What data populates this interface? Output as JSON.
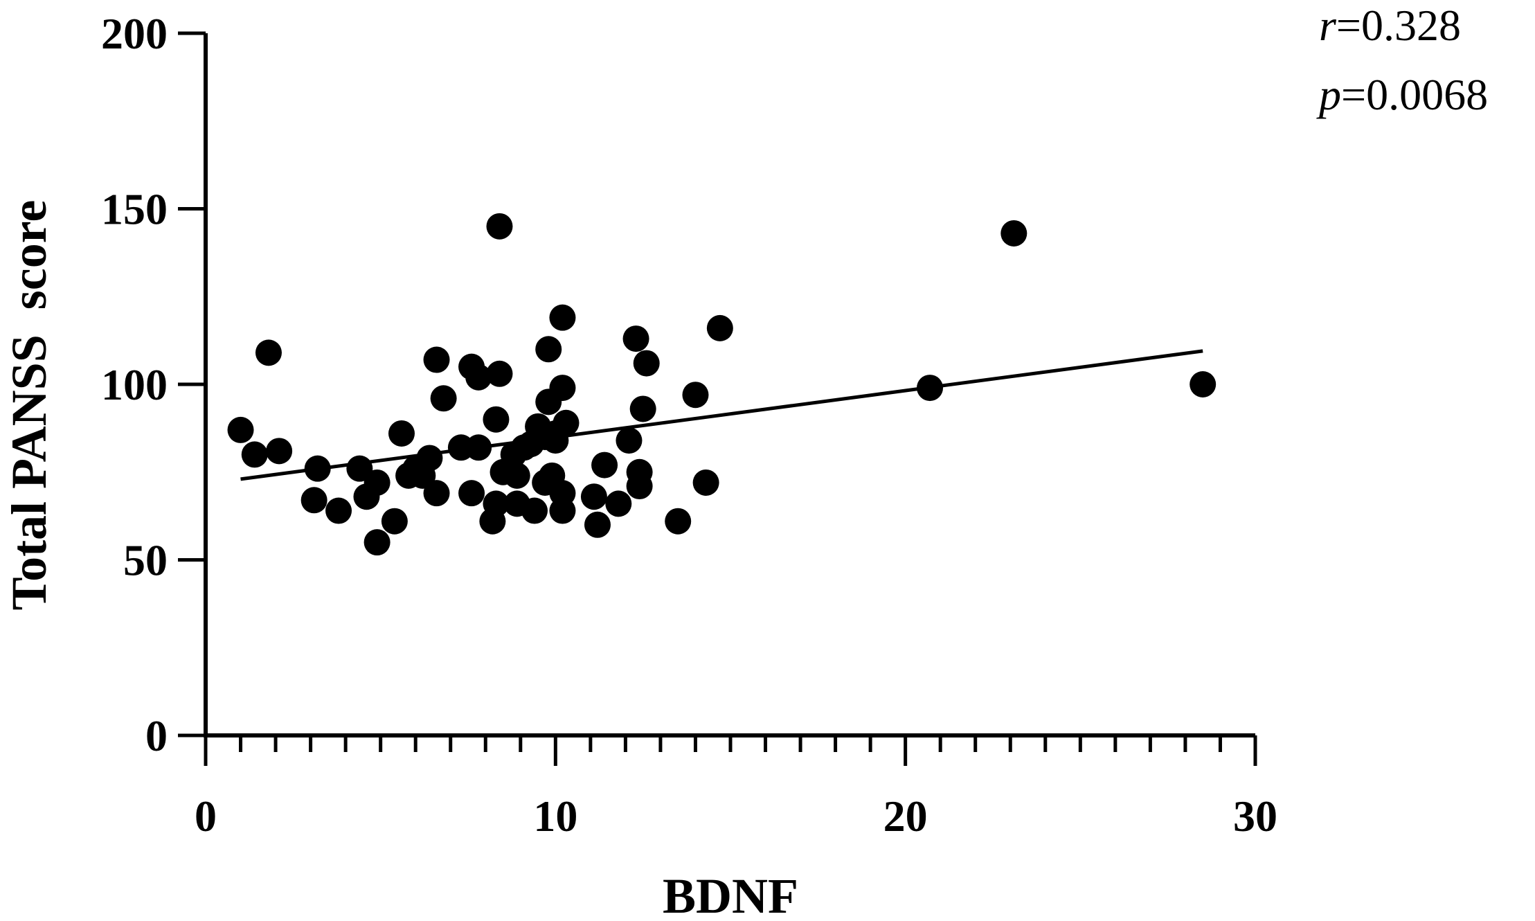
{
  "chart_data": {
    "type": "scatter",
    "xlabel": "BDNF",
    "ylabel": "Total PANSS  score",
    "xlim": [
      0,
      30
    ],
    "ylim": [
      0,
      200
    ],
    "x_ticks": [
      0,
      10,
      20,
      30
    ],
    "x_minor_step": 1,
    "y_ticks": [
      0,
      50,
      100,
      150,
      200
    ],
    "annotations": [
      {
        "symbol": "r",
        "text": "=0.328"
      },
      {
        "symbol": "p",
        "text": "=0.0068"
      }
    ],
    "fit_line": {
      "x": [
        1.0,
        28.5
      ],
      "y": [
        73,
        109.5
      ]
    },
    "points": [
      {
        "x": 1.0,
        "y": 87
      },
      {
        "x": 1.4,
        "y": 80
      },
      {
        "x": 1.8,
        "y": 109
      },
      {
        "x": 2.1,
        "y": 81
      },
      {
        "x": 3.1,
        "y": 67
      },
      {
        "x": 3.2,
        "y": 76
      },
      {
        "x": 3.8,
        "y": 64
      },
      {
        "x": 4.4,
        "y": 76
      },
      {
        "x": 4.6,
        "y": 68
      },
      {
        "x": 4.9,
        "y": 72
      },
      {
        "x": 4.9,
        "y": 55
      },
      {
        "x": 5.4,
        "y": 61
      },
      {
        "x": 5.6,
        "y": 86
      },
      {
        "x": 5.8,
        "y": 74
      },
      {
        "x": 6.0,
        "y": 76
      },
      {
        "x": 6.2,
        "y": 74
      },
      {
        "x": 6.4,
        "y": 79
      },
      {
        "x": 6.6,
        "y": 69
      },
      {
        "x": 6.6,
        "y": 107
      },
      {
        "x": 6.8,
        "y": 96
      },
      {
        "x": 7.3,
        "y": 82
      },
      {
        "x": 7.6,
        "y": 69
      },
      {
        "x": 7.6,
        "y": 105
      },
      {
        "x": 7.8,
        "y": 102
      },
      {
        "x": 7.8,
        "y": 82
      },
      {
        "x": 8.2,
        "y": 61
      },
      {
        "x": 8.3,
        "y": 90
      },
      {
        "x": 8.3,
        "y": 66
      },
      {
        "x": 8.4,
        "y": 145
      },
      {
        "x": 8.4,
        "y": 103
      },
      {
        "x": 8.5,
        "y": 75
      },
      {
        "x": 8.8,
        "y": 80
      },
      {
        "x": 8.9,
        "y": 74
      },
      {
        "x": 8.9,
        "y": 66
      },
      {
        "x": 9.1,
        "y": 82
      },
      {
        "x": 9.3,
        "y": 83
      },
      {
        "x": 9.4,
        "y": 64
      },
      {
        "x": 9.5,
        "y": 88
      },
      {
        "x": 9.7,
        "y": 72
      },
      {
        "x": 9.7,
        "y": 85
      },
      {
        "x": 9.8,
        "y": 110
      },
      {
        "x": 9.8,
        "y": 95
      },
      {
        "x": 9.9,
        "y": 74
      },
      {
        "x": 10.0,
        "y": 86
      },
      {
        "x": 10.0,
        "y": 84
      },
      {
        "x": 10.2,
        "y": 99
      },
      {
        "x": 10.2,
        "y": 69
      },
      {
        "x": 10.2,
        "y": 64
      },
      {
        "x": 10.2,
        "y": 119
      },
      {
        "x": 10.3,
        "y": 89
      },
      {
        "x": 11.1,
        "y": 68
      },
      {
        "x": 11.2,
        "y": 60
      },
      {
        "x": 11.4,
        "y": 77
      },
      {
        "x": 11.8,
        "y": 66
      },
      {
        "x": 12.1,
        "y": 84
      },
      {
        "x": 12.3,
        "y": 113
      },
      {
        "x": 12.4,
        "y": 75
      },
      {
        "x": 12.4,
        "y": 71
      },
      {
        "x": 12.5,
        "y": 93
      },
      {
        "x": 12.6,
        "y": 106
      },
      {
        "x": 13.5,
        "y": 61
      },
      {
        "x": 14.0,
        "y": 97
      },
      {
        "x": 14.3,
        "y": 72
      },
      {
        "x": 14.7,
        "y": 116
      },
      {
        "x": 20.7,
        "y": 99
      },
      {
        "x": 23.1,
        "y": 143
      },
      {
        "x": 28.5,
        "y": 100
      }
    ]
  }
}
